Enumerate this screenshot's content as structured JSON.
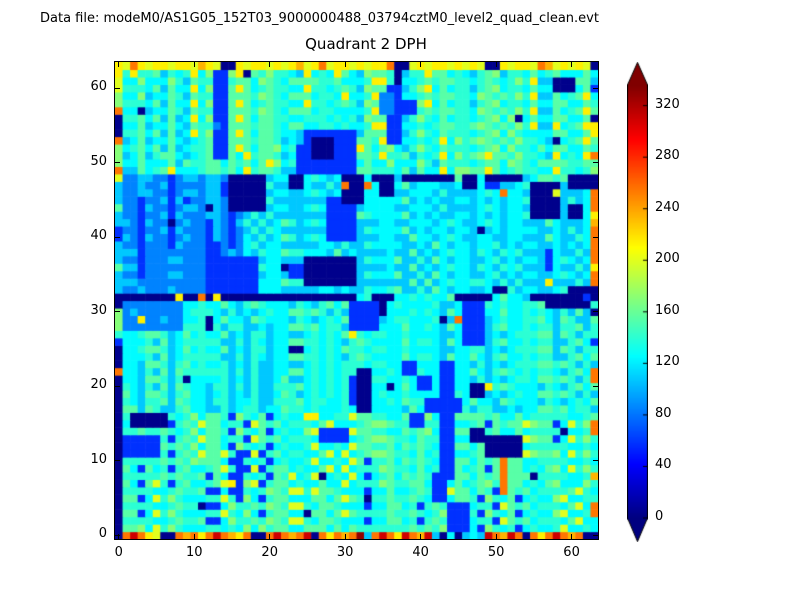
{
  "header": {
    "data_file_label": "Data file: modeM0/AS1G05_152T03_9000000488_03794cztM0_level2_quad_clean.evt"
  },
  "plot": {
    "title": "Quadrant 2 DPH"
  },
  "chart_data": {
    "type": "heatmap",
    "title": "Quadrant 2 DPH",
    "grid_size": 64,
    "x_ticks": [
      0,
      10,
      20,
      30,
      40,
      50,
      60
    ],
    "y_ticks": [
      0,
      10,
      20,
      30,
      40,
      50,
      60
    ],
    "xlim": [
      -0.5,
      63.5
    ],
    "ylim": [
      -0.5,
      63.5
    ],
    "colormap": "jet",
    "vmin": 0,
    "vmax": 336,
    "colorbar_ticks": [
      0,
      40,
      80,
      120,
      160,
      200,
      240,
      280,
      320
    ],
    "colorbar_extend": "both",
    "value_key": {
      "a": 4,
      "b": 58,
      "c": 85,
      "d": 108,
      "e": 125,
      "f": 140,
      "g": 155,
      "h": 170,
      "i": 185,
      "j": 200,
      "k": 215,
      "l": 235,
      "m": 255,
      "n": 285,
      "o": 310,
      "p": 330
    },
    "zones": [
      {
        "rows": [
          49,
          62
        ],
        "cols": [
          0,
          63
        ],
        "palette": "fgefgehfegdfkgfe"
      },
      {
        "rows": [
          33,
          48
        ],
        "cols": [
          0,
          16
        ],
        "palette": "cdccbccdcdccbdcc"
      },
      {
        "rows": [
          33,
          48
        ],
        "cols": [
          17,
          63
        ],
        "palette": "deedfdeededfdgde"
      },
      {
        "rows": [
          17,
          32
        ],
        "cols": [
          0,
          63
        ],
        "palette": "efdfeegfefdgefde"
      },
      {
        "rows": [
          1,
          16
        ],
        "cols": [
          0,
          63
        ],
        "palette": "fegfefgehfgejbfg"
      }
    ],
    "rows": {
      "63": "kjmkjkkjkkjlkjaakjkkjkjkljkmjkkjkjkkmaajkjkkjkjkjaakjkkjmljkjkja",
      "0": "amomkjaamlmkmomlkmaamomlmoamkmlmpdmomkomlodaeadedomlomamkmomlmaa"
    },
    "features": [
      [
        "b",
        13,
        51,
        2,
        12
      ],
      [
        "c",
        13,
        55,
        1,
        1
      ],
      [
        "a",
        17,
        62,
        1,
        1
      ],
      [
        "a",
        3,
        57,
        1,
        1
      ],
      [
        "b",
        36,
        53,
        2,
        8
      ],
      [
        "c",
        35,
        57,
        2,
        3
      ],
      [
        "b",
        37,
        57,
        3,
        2
      ],
      [
        "a",
        37,
        61,
        1,
        2
      ],
      [
        "a",
        58,
        60,
        3,
        2
      ],
      [
        "a",
        53,
        56,
        1,
        1
      ],
      [
        "a",
        58,
        53,
        1,
        1
      ],
      [
        "k",
        30,
        59,
        1,
        1
      ],
      [
        "b",
        24,
        49,
        8,
        6
      ],
      [
        "d",
        24,
        53,
        1,
        2
      ],
      [
        "a",
        26,
        51,
        3,
        3
      ],
      [
        "k",
        32,
        52,
        1,
        1
      ],
      [
        "d",
        23,
        49,
        1,
        1
      ],
      [
        "a",
        15,
        44,
        5,
        5
      ],
      [
        "b",
        14,
        46,
        1,
        2
      ],
      [
        "a",
        23,
        47,
        2,
        2
      ],
      [
        "b",
        28,
        40,
        4,
        6
      ],
      [
        "a",
        30,
        45,
        3,
        4
      ],
      [
        "m",
        30,
        47,
        1,
        1
      ],
      [
        "m",
        33,
        47,
        1,
        1
      ],
      [
        "a",
        35,
        46,
        2,
        3
      ],
      [
        "a",
        25,
        34,
        7,
        4
      ],
      [
        "b",
        23,
        35,
        2,
        2
      ],
      [
        "a",
        38,
        48,
        7,
        1
      ],
      [
        "a",
        34,
        48,
        1,
        1
      ],
      [
        "g",
        45,
        48,
        1,
        1
      ],
      [
        "a",
        46,
        47,
        2,
        2
      ],
      [
        "a",
        49,
        48,
        5,
        1
      ],
      [
        "b",
        49,
        47,
        2,
        1
      ],
      [
        "d",
        54,
        48,
        1,
        1
      ],
      [
        "a",
        55,
        43,
        4,
        5
      ],
      [
        "j",
        58,
        46,
        1,
        1
      ],
      [
        "m",
        51,
        46,
        1,
        1
      ],
      [
        "g",
        59,
        48,
        1,
        1
      ],
      [
        "a",
        60,
        47,
        4,
        2
      ],
      [
        "a",
        48,
        41,
        1,
        1
      ],
      [
        "a",
        60,
        43,
        2,
        2
      ],
      [
        "b",
        57,
        36,
        1,
        3
      ],
      [
        "a",
        60,
        31,
        3,
        3
      ],
      [
        "m",
        58,
        32,
        1,
        1
      ],
      [
        "k",
        57,
        34,
        1,
        1
      ],
      [
        "a",
        50,
        33,
        2,
        1
      ],
      [
        "b",
        14,
        32,
        5,
        6
      ],
      [
        "a",
        0,
        32,
        32,
        1
      ],
      [
        "k",
        8,
        32,
        1,
        1
      ],
      [
        "m",
        11,
        32,
        1,
        1
      ],
      [
        "k",
        13,
        32,
        1,
        1
      ],
      [
        "a",
        34,
        32,
        3,
        1
      ],
      [
        "a",
        45,
        32,
        5,
        1
      ],
      [
        "a",
        55,
        32,
        6,
        1
      ],
      [
        "b",
        62,
        32,
        1,
        1
      ],
      [
        "a",
        63,
        32,
        1,
        2
      ],
      [
        "a",
        57,
        31,
        3,
        1
      ],
      [
        "b",
        31,
        28,
        4,
        4
      ],
      [
        "a",
        35,
        30,
        1,
        2
      ],
      [
        "c",
        1,
        28,
        8,
        4
      ],
      [
        "d",
        2,
        30,
        1,
        1
      ],
      [
        "d",
        6,
        29,
        1,
        1
      ],
      [
        "a",
        12,
        28,
        1,
        2
      ],
      [
        "k",
        3,
        29,
        1,
        1
      ],
      [
        "b",
        46,
        26,
        3,
        6
      ],
      [
        "m",
        45,
        29,
        1,
        1
      ],
      [
        "a",
        43,
        29,
        1,
        1
      ],
      [
        "a",
        32,
        17,
        2,
        6
      ],
      [
        "b",
        31,
        18,
        1,
        4
      ],
      [
        "k",
        31,
        27,
        1,
        1
      ],
      [
        "k",
        25,
        16,
        2,
        1
      ],
      [
        "b",
        27,
        13,
        4,
        2
      ],
      [
        "a",
        23,
        25,
        2,
        1
      ],
      [
        "b",
        43,
        8,
        2,
        16
      ],
      [
        "b",
        38,
        22,
        2,
        2
      ],
      [
        "b",
        40,
        20,
        2,
        2
      ],
      [
        "b",
        41,
        17,
        5,
        2
      ],
      [
        "b",
        39,
        15,
        2,
        2
      ],
      [
        "a",
        47,
        19,
        2,
        2
      ],
      [
        "k",
        49,
        20,
        1,
        1
      ],
      [
        "a",
        47,
        13,
        2,
        2
      ],
      [
        "a",
        49,
        11,
        5,
        3
      ],
      [
        "m",
        51,
        6,
        1,
        5
      ],
      [
        "b",
        42,
        5,
        2,
        4
      ],
      [
        "b",
        44,
        1,
        3,
        4
      ],
      [
        "a",
        33,
        5,
        1,
        1
      ],
      [
        "a",
        11,
        4,
        1,
        1
      ],
      [
        "a",
        25,
        3,
        1,
        1
      ],
      [
        "a",
        2,
        15,
        5,
        2
      ],
      [
        "b",
        1,
        11,
        5,
        3
      ],
      [
        "b",
        16,
        5,
        1,
        7
      ],
      [
        "k",
        15,
        7,
        1,
        1
      ],
      [
        "a",
        36,
        20,
        1,
        1
      ],
      [
        "a",
        9,
        21,
        1,
        1
      ],
      [
        "a",
        27,
        8,
        1,
        1
      ],
      [
        "a",
        55,
        8,
        1,
        1
      ],
      [
        "a",
        59,
        14,
        1,
        1
      ],
      [
        "a",
        22,
        36,
        1,
        1
      ],
      [
        "a",
        7,
        42,
        1,
        1
      ],
      [
        "a",
        12,
        44,
        1,
        1
      ],
      [
        "b",
        9,
        45,
        1,
        1
      ],
      [
        "m",
        0,
        49,
        1,
        1
      ],
      [
        "h",
        0,
        50,
        1,
        3
      ],
      [
        "m",
        0,
        53,
        1,
        1
      ],
      [
        "a",
        0,
        54,
        1,
        3
      ],
      [
        "m",
        0,
        57,
        1,
        1
      ],
      [
        "h",
        0,
        58,
        1,
        2
      ],
      [
        "j",
        0,
        60,
        1,
        2
      ],
      [
        "k",
        0,
        62,
        1,
        1
      ],
      [
        "j",
        0,
        48,
        1,
        1
      ],
      [
        "d",
        0,
        33,
        1,
        15
      ],
      [
        "g",
        0,
        36,
        1,
        1
      ],
      [
        "g",
        0,
        44,
        1,
        1
      ],
      [
        "b",
        0,
        40,
        1,
        2
      ],
      [
        "a",
        0,
        31,
        1,
        2
      ],
      [
        "h",
        0,
        28,
        1,
        3
      ],
      [
        "f",
        0,
        27,
        1,
        1
      ],
      [
        "b",
        0,
        26,
        1,
        1
      ],
      [
        "a",
        0,
        1,
        1,
        25
      ],
      [
        "m",
        0,
        22,
        1,
        1
      ],
      [
        "e",
        63,
        62,
        1,
        1
      ],
      [
        "d",
        63,
        61,
        1,
        1
      ],
      [
        "b",
        63,
        60,
        1,
        1
      ],
      [
        "e",
        63,
        59,
        1,
        1
      ],
      [
        "f",
        63,
        58,
        1,
        1
      ],
      [
        "g",
        63,
        57,
        1,
        1
      ],
      [
        "a",
        63,
        56,
        1,
        1
      ],
      [
        "k",
        63,
        54,
        1,
        2
      ],
      [
        "g",
        63,
        53,
        1,
        1
      ],
      [
        "f",
        63,
        52,
        1,
        1
      ],
      [
        "m",
        63,
        51,
        1,
        1
      ],
      [
        "g",
        63,
        50,
        1,
        1
      ],
      [
        "h",
        63,
        49,
        1,
        1
      ],
      [
        "m",
        63,
        44,
        1,
        3
      ],
      [
        "k",
        63,
        43,
        1,
        1
      ],
      [
        "l",
        63,
        42,
        1,
        1
      ],
      [
        "m",
        63,
        37,
        1,
        5
      ],
      [
        "k",
        63,
        36,
        1,
        1
      ],
      [
        "m",
        63,
        34,
        1,
        2
      ],
      [
        "a",
        63,
        33,
        1,
        1
      ],
      [
        "f",
        63,
        31,
        1,
        1
      ],
      [
        "a",
        63,
        30,
        1,
        1
      ],
      [
        "g",
        63,
        29,
        1,
        1
      ],
      [
        "f",
        63,
        28,
        1,
        1
      ],
      [
        "b",
        63,
        26,
        1,
        1
      ],
      [
        "m",
        63,
        21,
        1,
        2
      ],
      [
        "m",
        63,
        14,
        1,
        2
      ],
      [
        "l",
        63,
        8,
        1,
        1
      ],
      [
        "m",
        63,
        3,
        1,
        2
      ]
    ]
  }
}
